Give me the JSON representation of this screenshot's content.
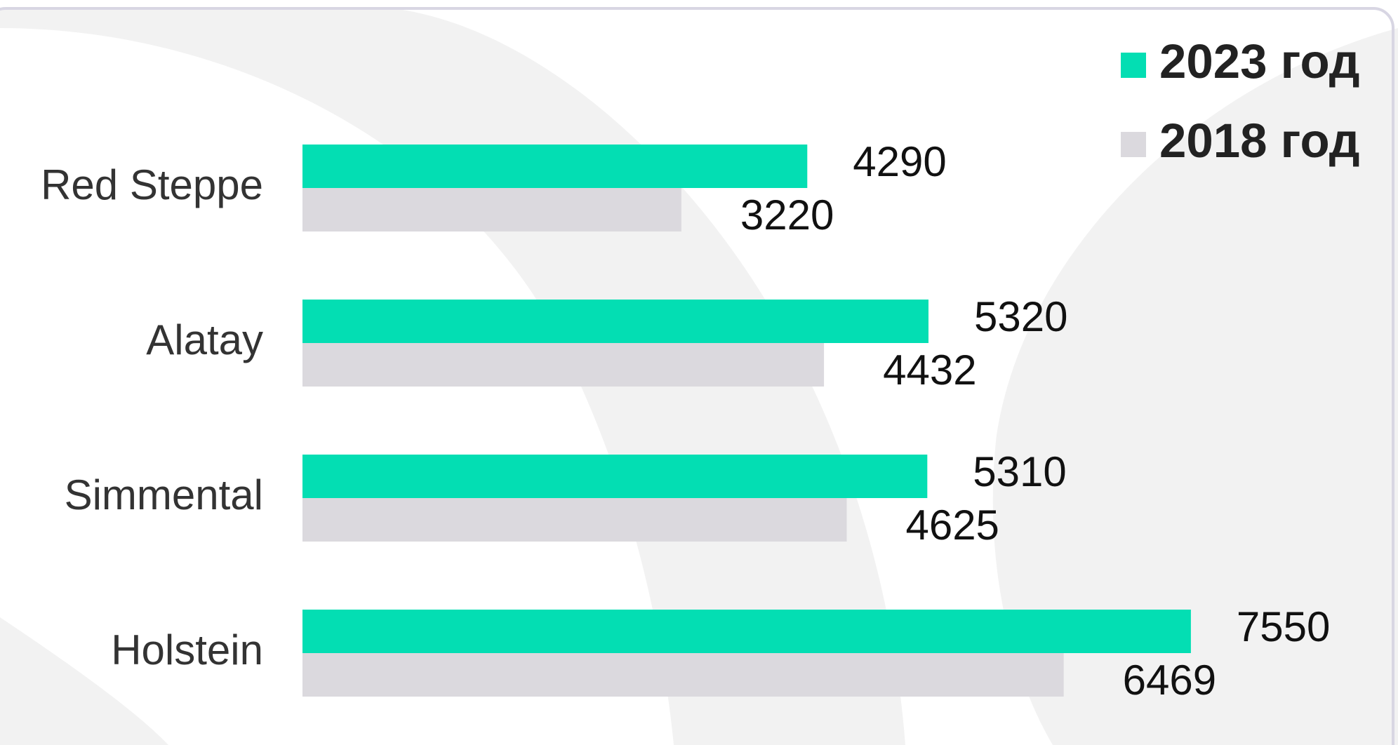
{
  "chart_data": {
    "type": "bar",
    "orientation": "horizontal",
    "categories": [
      "Red Steppe",
      "Alatay",
      "Simmental",
      "Holstein"
    ],
    "series": [
      {
        "name": "2023 год",
        "color": "#03deb3",
        "values": [
          4290,
          5320,
          5310,
          7550
        ]
      },
      {
        "name": "2018 год",
        "color": "#dbd9de",
        "values": [
          3220,
          4432,
          4625,
          6469
        ]
      }
    ],
    "xlim": [
      0,
      9000
    ],
    "legend": "top-right"
  }
}
